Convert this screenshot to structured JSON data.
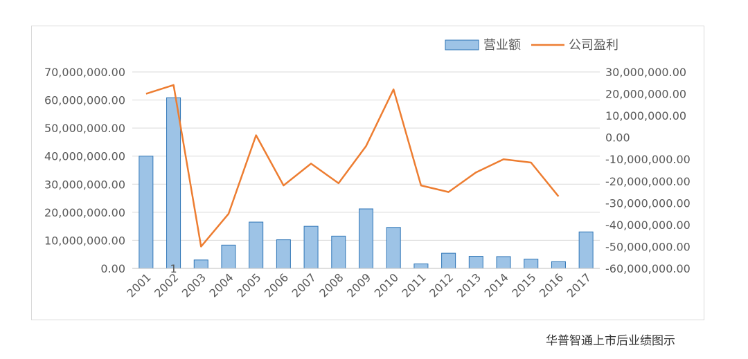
{
  "chart_data": {
    "type": "bar+line",
    "categories": [
      "2001",
      "2002",
      "2003",
      "2004",
      "2005",
      "2006",
      "2007",
      "2008",
      "2009",
      "2010",
      "2011",
      "2012",
      "2013",
      "2014",
      "2015",
      "2016",
      "2017"
    ],
    "series": [
      {
        "name": "营业额",
        "type": "bar",
        "axis": "left",
        "color": "#9dc3e6",
        "values": [
          40000000,
          60800000,
          3000000,
          8300000,
          16500000,
          10200000,
          15000000,
          11500000,
          21200000,
          14600000,
          1600000,
          5400000,
          4300000,
          4200000,
          3300000,
          2400000,
          13000000
        ]
      },
      {
        "name": "公司盈利",
        "type": "line",
        "axis": "right",
        "color": "#ed7d31",
        "values": [
          20000000,
          24000000,
          -50000000,
          -35000000,
          1000000,
          -22000000,
          -12000000,
          -21000000,
          -4000000,
          22000000,
          -22000000,
          -25000000,
          -16000000,
          -10000000,
          -11500000,
          -27000000,
          null
        ]
      }
    ],
    "y_left": {
      "range": [
        0,
        70000000
      ],
      "ticks": [
        "0.00",
        "10,000,000.00",
        "20,000,000.00",
        "30,000,000.00",
        "40,000,000.00",
        "50,000,000.00",
        "60,000,000.00",
        "70,000,000.00"
      ]
    },
    "y_right": {
      "range": [
        -60000000,
        30000000
      ],
      "ticks": [
        "-60,000,000.00",
        "-50,000,000.00",
        "-40,000,000.00",
        "-30,000,000.00",
        "-20,000,000.00",
        "-10,000,000.00",
        "0.00",
        "10,000,000.00",
        "20,000,000.00",
        "30,000,000.00"
      ]
    },
    "annotations": [
      {
        "text": "1",
        "category": "2002"
      }
    ],
    "legend": "top-right",
    "grid": true
  },
  "caption": "华普智通上市后业绩图示"
}
